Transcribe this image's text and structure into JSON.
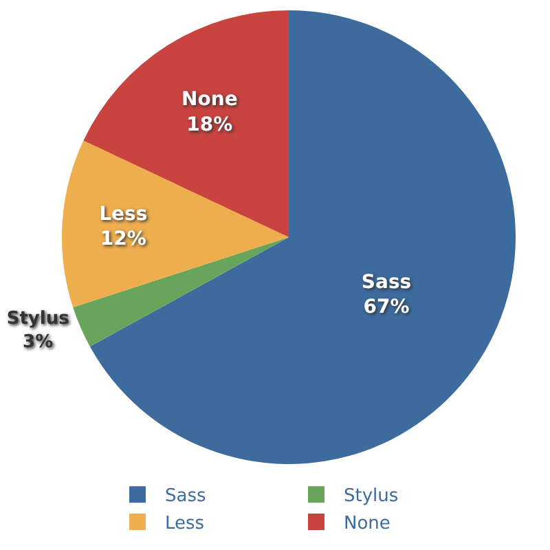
{
  "chart_data": {
    "type": "pie",
    "categories": [
      "Sass",
      "Stylus",
      "Less",
      "None"
    ],
    "values": [
      67,
      3,
      12,
      18
    ],
    "value_labels": [
      "67%",
      "3%",
      "12%",
      "18%"
    ],
    "colors": [
      "#3d6b9e",
      "#68a55a",
      "#efae4d",
      "#c9433f"
    ],
    "legend": "bottom"
  }
}
